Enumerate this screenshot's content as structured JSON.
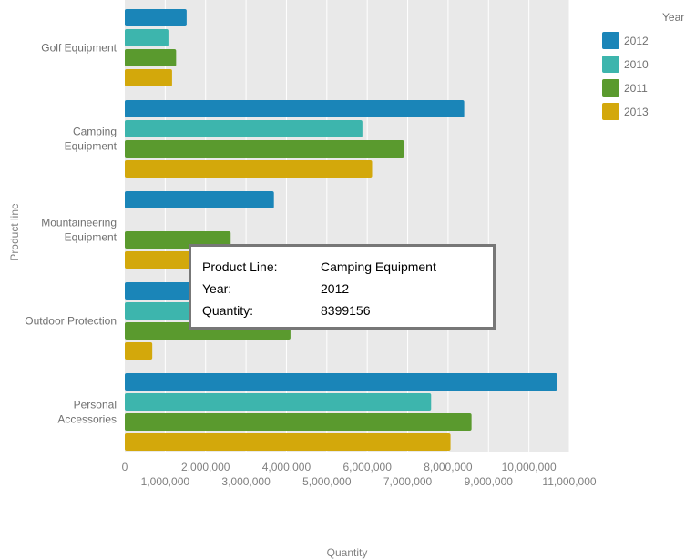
{
  "chart_data": {
    "type": "bar",
    "orientation": "horizontal",
    "ylabel": "Product line",
    "xlabel": "Quantity",
    "legend_title": "Year",
    "legend_position": "top-right",
    "grid": true,
    "xlim": [
      0,
      11000000
    ],
    "ticks_upper": [
      "0",
      "2,000,000",
      "4,000,000",
      "6,000,000",
      "8,000,000",
      "10,000,000"
    ],
    "ticks_lower": [
      "1,000,000",
      "3,000,000",
      "5,000,000",
      "7,000,000",
      "9,000,000",
      "11,000,000"
    ],
    "categories": [
      [
        "Golf Equipment"
      ],
      [
        "Camping",
        "Equipment"
      ],
      [
        "Mountaineering",
        "Equipment"
      ],
      [
        "Outdoor Protection"
      ],
      [
        "Personal",
        "Accessories"
      ]
    ],
    "series": [
      {
        "name": "2012",
        "color": "#1a85b8",
        "values": [
          1530000,
          8399156,
          3690000,
          2350000,
          10700000
        ]
      },
      {
        "name": "2010",
        "color": "#3db5ad",
        "values": [
          1080000,
          5880000,
          0,
          2420000,
          7580000
        ]
      },
      {
        "name": "2011",
        "color": "#5a9a2e",
        "values": [
          1270000,
          6910000,
          2620000,
          4100000,
          8580000
        ]
      },
      {
        "name": "2013",
        "color": "#d3a80b",
        "values": [
          1170000,
          6120000,
          2450000,
          680000,
          8060000
        ]
      }
    ]
  },
  "tooltip": {
    "product_line_label": "Product Line:",
    "product_line_value": "Camping Equipment",
    "year_label": "Year:",
    "year_value": "2012",
    "quantity_label": "Quantity:",
    "quantity_value": "8399156"
  }
}
